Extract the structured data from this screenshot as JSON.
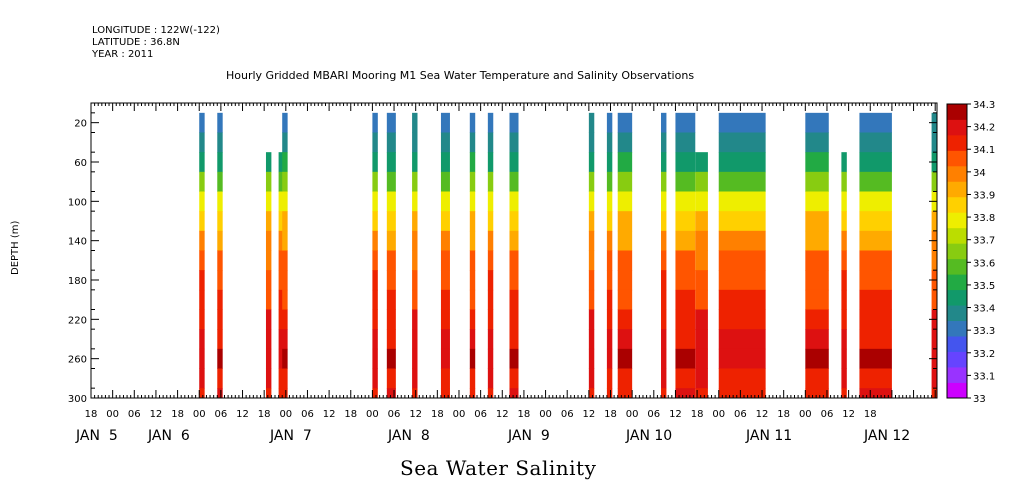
{
  "header": {
    "longitude": "LONGITUDE : 122W(-122)",
    "latitude": "LATITUDE : 36.8N",
    "year": "YEAR : 2011"
  },
  "chart_data": {
    "type": "heatmap",
    "title": "Hourly Gridded MBARI Mooring M1 Sea Water Temperature and Salinity Observations",
    "xlabel": "Sea Water Salinity",
    "ylabel": "DEPTH (m)",
    "ylim": [
      300,
      0
    ],
    "y_ticks": [
      20,
      60,
      100,
      140,
      180,
      220,
      260,
      300
    ],
    "x_hour_tick_labels": [
      "18",
      "00",
      "06",
      "12",
      "18",
      "00",
      "06",
      "12",
      "18",
      "00",
      "06",
      "12",
      "18",
      "00",
      "06",
      "12",
      "18",
      "00",
      "06",
      "12",
      "18",
      "00",
      "06",
      "12",
      "18",
      "00",
      "06",
      "12",
      "18",
      "00",
      "06",
      "12",
      "18",
      "00",
      "06",
      "12",
      "18"
    ],
    "x_date_labels": [
      "JAN  5",
      "JAN  6",
      "JAN  7",
      "JAN  8",
      "JAN  9",
      "JAN 10",
      "JAN 11",
      "JAN 12"
    ],
    "colorbar": {
      "min": 33,
      "max": 34.3,
      "tick_labels": [
        "34.3",
        "34.2",
        "34.1",
        "34",
        "33.9",
        "33.8",
        "33.7",
        "33.6",
        "33.5",
        "33.4",
        "33.3",
        "33.2",
        "33.1",
        "33"
      ],
      "colors": [
        "#cc00ff",
        "#9933ff",
        "#6644ff",
        "#4455ee",
        "#3377bb",
        "#22888a",
        "#11996a",
        "#22aa44",
        "#55bb22",
        "#88cc11",
        "#bbdd00",
        "#eeee00",
        "#ffd000",
        "#ffaa00",
        "#ff8000",
        "#ff5500",
        "#ee2200",
        "#dd1111",
        "#aa0000"
      ]
    },
    "profile": {
      "depth": [
        20,
        40,
        60,
        80,
        100,
        120,
        140,
        160,
        180,
        200,
        220,
        240,
        260,
        280,
        300
      ],
      "salinity": [
        33.32,
        33.38,
        33.46,
        33.62,
        33.78,
        33.88,
        33.96,
        34.05,
        34.08,
        34.1,
        34.14,
        34.18,
        34.22,
        34.16,
        34.14
      ]
    },
    "observation_hours": [
      {
        "start": 30,
        "end": 31.5,
        "top": 20
      },
      {
        "start": 35,
        "end": 36.5,
        "top": 20
      },
      {
        "start": 48.5,
        "end": 50,
        "top": 60
      },
      {
        "start": 52,
        "end": 53.5,
        "top": 60
      },
      {
        "start": 53,
        "end": 54.5,
        "top": 20
      },
      {
        "start": 78,
        "end": 79.5,
        "top": 20
      },
      {
        "start": 82,
        "end": 84.5,
        "top": 20
      },
      {
        "start": 89,
        "end": 90.5,
        "top": 20
      },
      {
        "start": 97,
        "end": 99.5,
        "top": 20
      },
      {
        "start": 105,
        "end": 106.5,
        "top": 20
      },
      {
        "start": 110,
        "end": 111.5,
        "top": 20
      },
      {
        "start": 116,
        "end": 118.5,
        "top": 20
      },
      {
        "start": 138,
        "end": 139.5,
        "top": 20
      },
      {
        "start": 143,
        "end": 144.5,
        "top": 20
      },
      {
        "start": 146,
        "end": 150,
        "top": 20
      },
      {
        "start": 158,
        "end": 159.5,
        "top": 20
      },
      {
        "start": 162,
        "end": 167.5,
        "top": 20
      },
      {
        "start": 167.5,
        "end": 171,
        "top": 60
      },
      {
        "start": 174,
        "end": 187,
        "top": 20
      },
      {
        "start": 198,
        "end": 204.5,
        "top": 20
      },
      {
        "start": 208,
        "end": 209.5,
        "top": 60
      },
      {
        "start": 213,
        "end": 222,
        "top": 20
      },
      {
        "start": 233,
        "end": 234.5,
        "top": 20
      }
    ],
    "x_range_hours": [
      0,
      234.5
    ]
  }
}
